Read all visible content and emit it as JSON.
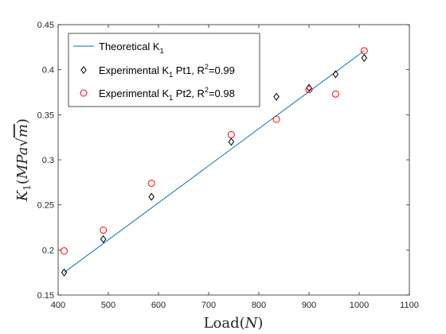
{
  "chart_data": {
    "type": "scatter",
    "x_label": "Load(N)",
    "y_label": "K₁(MPa√m)",
    "xlim": [
      400,
      1100
    ],
    "ylim": [
      0.15,
      0.45
    ],
    "x_ticks": [
      400,
      500,
      600,
      700,
      800,
      900,
      1000,
      1100
    ],
    "y_ticks": [
      0.15,
      0.2,
      0.25,
      0.3,
      0.35,
      0.4,
      0.45
    ],
    "x_tick_labels": [
      "400",
      "500",
      "600",
      "700",
      "800",
      "900",
      "1000",
      "1100"
    ],
    "y_tick_labels": [
      "0.15",
      "0.2",
      "0.25",
      "0.3",
      "0.35",
      "0.4",
      "0.45"
    ],
    "grid": false,
    "legend_position": "top-left",
    "series": [
      {
        "name": "Theoretical K1",
        "legend_text": "Theoretical K",
        "legend_sub": "1",
        "legend_tail": "",
        "style": "line",
        "color": "#0072bd",
        "x": [
          412,
          1010
        ],
        "y": [
          0.175,
          0.421
        ]
      },
      {
        "name": "Experimental K1 Pt1, R2=0.99",
        "legend_text": "Experimental K",
        "legend_sub": "1",
        "legend_tail": " Pt1, R",
        "legend_sup": "2",
        "legend_end": "=0.99",
        "style": "diamond",
        "color": "#000000",
        "x": [
          412,
          490,
          586,
          745,
          835,
          900,
          953,
          1010
        ],
        "y": [
          0.175,
          0.212,
          0.259,
          0.32,
          0.37,
          0.38,
          0.395,
          0.413
        ]
      },
      {
        "name": "Experimental K1 Pt2, R2=0.98",
        "legend_text": "Experimental K",
        "legend_sub": "1",
        "legend_tail": " Pt2, R",
        "legend_sup": "2",
        "legend_end": "=0.98",
        "style": "circle",
        "color": "#ff0000",
        "x": [
          412,
          490,
          586,
          745,
          835,
          900,
          953,
          1010
        ],
        "y": [
          0.199,
          0.222,
          0.274,
          0.328,
          0.345,
          0.378,
          0.373,
          0.421
        ]
      }
    ]
  }
}
